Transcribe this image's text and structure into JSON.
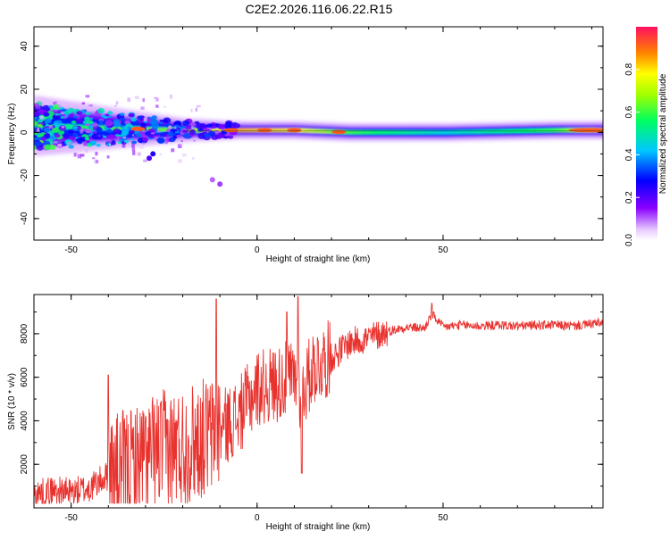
{
  "figure_title": "C2E2.2026.116.06.22.R15",
  "colors": {
    "snr_line": "#e8322e",
    "ridge": "#00ff7f",
    "core": "#ee2222",
    "halo": "#c8a8f0"
  },
  "chart_data": [
    {
      "type": "heatmap",
      "title": "C2E2.2026.116.06.22.R15",
      "xlabel": "Height of straight line (km)",
      "ylabel": "Frequency (Hz)",
      "xlim": [
        -60,
        93
      ],
      "ylim": [
        -50,
        49
      ],
      "xticks": [
        -50,
        0,
        50
      ],
      "yticks": [
        -40,
        -20,
        0,
        20,
        40
      ],
      "grid": false,
      "colorbar": {
        "label": "Normalized spectral amplitude",
        "range": [
          0,
          1
        ],
        "ticks": [
          0.0,
          0.2,
          0.4,
          0.6,
          0.8
        ],
        "colormap": "rainbow"
      },
      "ridge": {
        "description_points": [
          {
            "x": -60,
            "y": 3,
            "width": 10,
            "amp": 0.55
          },
          {
            "x": -40,
            "y": 2,
            "width": 7,
            "amp": 0.6
          },
          {
            "x": -20,
            "y": 1,
            "width": 4,
            "amp": 0.65
          },
          {
            "x": -5,
            "y": 1,
            "width": 3,
            "amp": 0.85
          },
          {
            "x": 10,
            "y": 1,
            "width": 3,
            "amp": 0.8
          },
          {
            "x": 25,
            "y": 0,
            "width": 3,
            "amp": 0.6
          },
          {
            "x": 50,
            "y": 0,
            "width": 3,
            "amp": 0.45
          },
          {
            "x": 80,
            "y": 1,
            "width": 3,
            "amp": 0.6
          },
          {
            "x": 93,
            "y": 1,
            "width": 3,
            "amp": 0.85
          }
        ],
        "hot_spots_x": [
          -32,
          -7,
          2,
          10,
          22,
          89
        ]
      }
    },
    {
      "type": "line",
      "xlabel": "Height of straight line (km)",
      "ylabel": "SNR (10 * v/v)",
      "xlim": [
        -60,
        93
      ],
      "ylim": [
        0,
        9800
      ],
      "xticks": [
        -50,
        0,
        50
      ],
      "yticks": [
        2000,
        4000,
        6000,
        8000
      ],
      "grid": false,
      "series": [
        {
          "x": [
            -60,
            -55,
            -50,
            -45,
            -40,
            -35,
            -30,
            -25,
            -20,
            -15,
            -12,
            -10,
            -5,
            0,
            5,
            10,
            12,
            15,
            20,
            25,
            30,
            35,
            40,
            45,
            47,
            50,
            55,
            60,
            65,
            70,
            75,
            80,
            85,
            90,
            93
          ],
          "y": [
            600,
            800,
            700,
            900,
            1500,
            1800,
            2300,
            2700,
            2800,
            3200,
            3300,
            3600,
            4200,
            5500,
            5700,
            6000,
            5200,
            6500,
            6900,
            7600,
            7800,
            8100,
            8300,
            8250,
            8900,
            8300,
            8400,
            8350,
            8400,
            8350,
            8400,
            8400,
            8350,
            8450,
            8500
          ],
          "spikes": [
            {
              "x": -11,
              "y": 9600
            },
            {
              "x": 11,
              "y": 9700
            },
            {
              "x": 8,
              "y": 9000
            },
            {
              "x": -40,
              "y": 6100
            },
            {
              "x": 47,
              "y": 9400
            },
            {
              "x": 12,
              "y": 1600
            }
          ]
        }
      ]
    }
  ]
}
